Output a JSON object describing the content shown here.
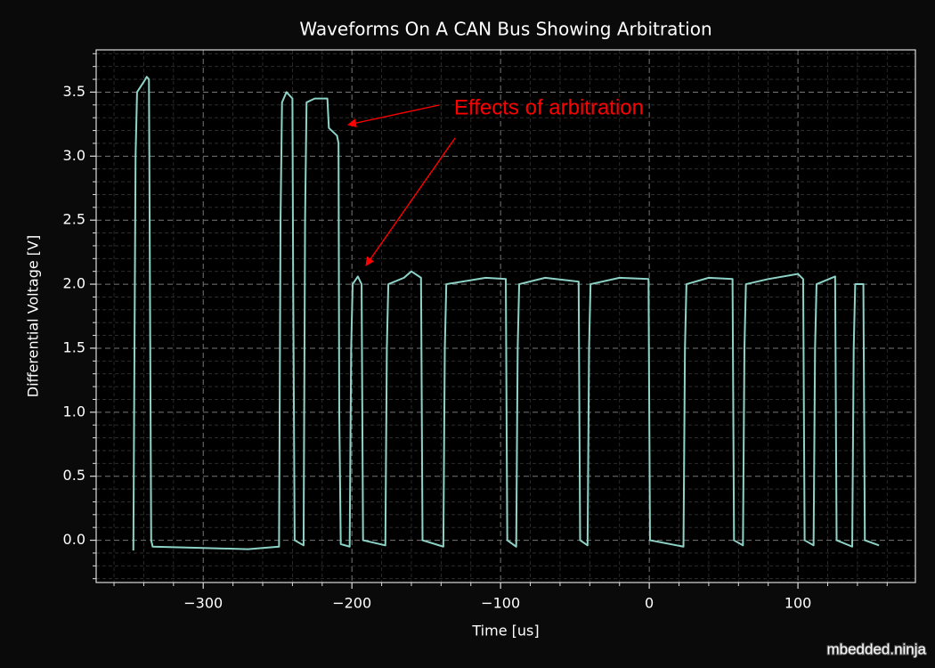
{
  "chart_data": {
    "type": "line",
    "title": "Waveforms On A CAN Bus Showing Arbitration",
    "xlabel": "Time [us]",
    "ylabel": "Differential Voltage [V]",
    "annotation": "Effects of arbitration",
    "watermark": "mbedded.ninja",
    "xlim": [
      -372,
      179
    ],
    "ylim": [
      -0.33,
      3.83
    ],
    "xticks": [
      {
        "value": -300,
        "label": "−300"
      },
      {
        "value": -200,
        "label": "−200"
      },
      {
        "value": -100,
        "label": "−100"
      },
      0,
      100
    ],
    "yticks": [
      {
        "value": 0,
        "label": "0.0"
      },
      0.5,
      {
        "value": 1,
        "label": "1.0"
      },
      1.5,
      {
        "value": 2,
        "label": "2.0"
      },
      2.5,
      {
        "value": 3,
        "label": "3.0"
      },
      3.5
    ],
    "xticks_minor": [
      -360,
      -340,
      -320,
      -280,
      -260,
      -240,
      -220,
      -180,
      -160,
      -140,
      -120,
      -80,
      -60,
      -40,
      -20,
      20,
      40,
      60,
      80,
      120,
      140,
      160
    ],
    "yticks_minor": [
      -0.3,
      -0.2,
      -0.1,
      0.1,
      0.2,
      0.3,
      0.4,
      0.6,
      0.7,
      0.8,
      0.9,
      1.1,
      1.2,
      1.3,
      1.4,
      1.6,
      1.7,
      1.8,
      1.9,
      2.1,
      2.2,
      2.3,
      2.4,
      2.6,
      2.7,
      2.8,
      2.9,
      3.1,
      3.2,
      3.3,
      3.4,
      3.6,
      3.7,
      3.8
    ],
    "grid": true,
    "x": [
      -347,
      -345.5,
      -344.5,
      -340,
      -338,
      -336.5,
      -335,
      -334,
      -300,
      -270,
      -249,
      -248,
      -247,
      -244,
      -240,
      -239.5,
      -238.5,
      -232.5,
      -231.5,
      -230.5,
      -225,
      -216.5,
      -215.5,
      -210,
      -209,
      -208.5,
      -207.5,
      -201.5,
      -200.5,
      -199.5,
      -196,
      -193.5,
      -192.5,
      -177.5,
      -176.5,
      -175.5,
      -165,
      -160,
      -153.5,
      -152.5,
      -138.5,
      -137.5,
      -136.5,
      -110,
      -96.5,
      -95.5,
      -89.5,
      -88.5,
      -87.5,
      -70,
      -47.5,
      -46.5,
      -41.5,
      -40.5,
      -39.5,
      -20,
      -0.5,
      0.5,
      23,
      24,
      25,
      40,
      56,
      57,
      63,
      64,
      65,
      80,
      100,
      103.5,
      104.5,
      110.5,
      111.5,
      112.5,
      125,
      126,
      136.5,
      137.5,
      138.5,
      144,
      145,
      154.5
    ],
    "series": [
      {
        "color": "#8dd3c7",
        "values": [
          -0.08,
          3.0,
          3.5,
          3.58,
          3.62,
          3.6,
          0.0,
          -0.05,
          -0.06,
          -0.07,
          -0.05,
          2.5,
          3.42,
          3.5,
          3.45,
          2.0,
          0.0,
          -0.04,
          2.5,
          3.42,
          3.45,
          3.45,
          3.22,
          3.16,
          3.1,
          1.0,
          -0.03,
          -0.05,
          1.5,
          2.0,
          2.06,
          2.0,
          0.0,
          -0.04,
          1.5,
          2.0,
          2.05,
          2.1,
          2.05,
          0.0,
          -0.05,
          1.5,
          2.0,
          2.05,
          2.04,
          0.0,
          -0.05,
          1.5,
          2.0,
          2.05,
          2.02,
          0.0,
          -0.04,
          1.5,
          2.0,
          2.05,
          2.04,
          0.0,
          -0.05,
          1.5,
          2.0,
          2.05,
          2.04,
          0.0,
          -0.04,
          1.5,
          2.0,
          2.04,
          2.08,
          2.04,
          0.0,
          -0.04,
          1.5,
          2.0,
          2.06,
          0.0,
          -0.05,
          1.5,
          2.0,
          2.0,
          0.0,
          -0.04
        ]
      }
    ]
  }
}
